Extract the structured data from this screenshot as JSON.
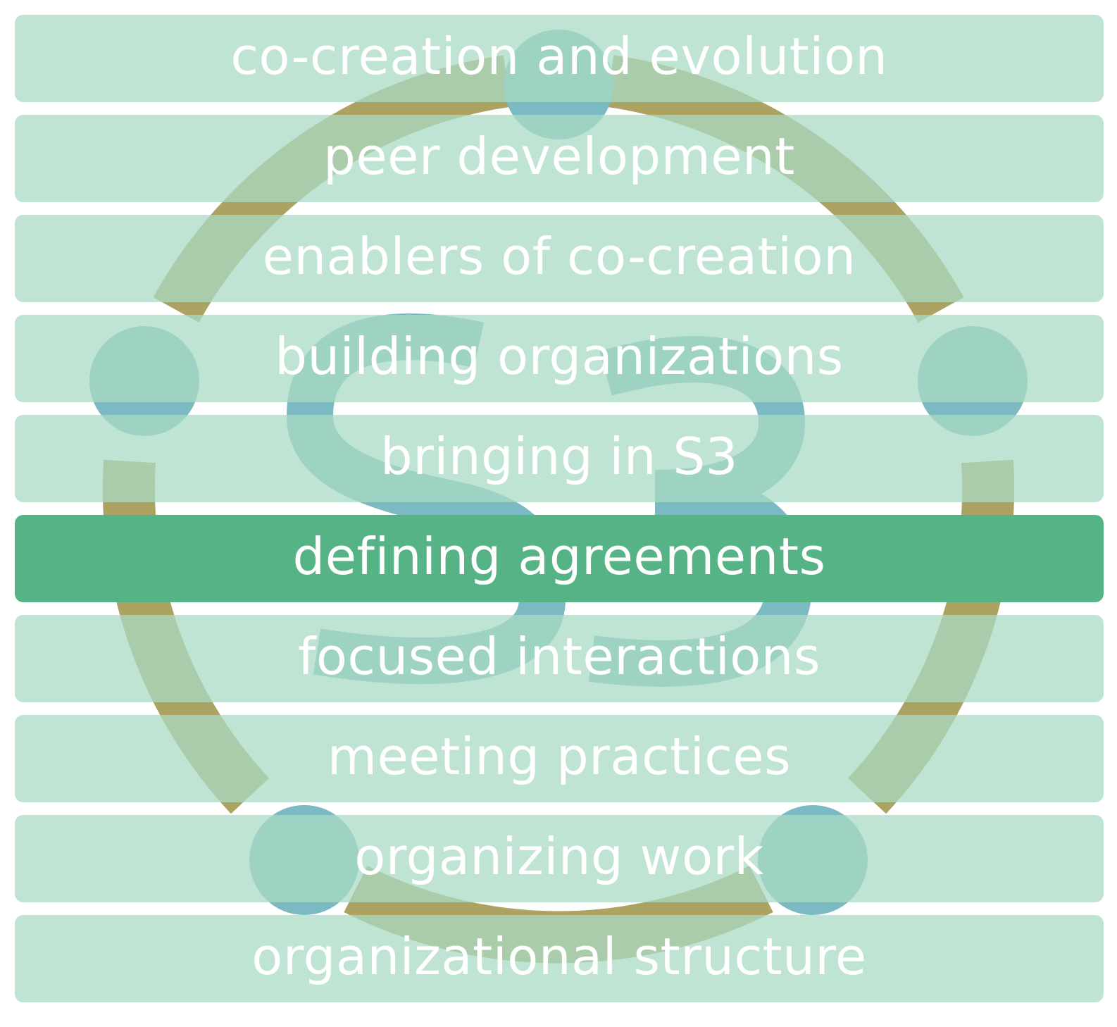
{
  "colors": {
    "row_background": "#aadbc3",
    "row_active_background": "#56b386",
    "label_text": "#ffffff",
    "ring": "#aca262",
    "dots_and_mark": "#7bbac2"
  },
  "logo": {
    "icon": "s3-circle-logo-icon",
    "mark_text": "S3"
  },
  "categories": [
    {
      "label": "co-creation and evolution",
      "active": false
    },
    {
      "label": "peer development",
      "active": false
    },
    {
      "label": "enablers of co-creation",
      "active": false
    },
    {
      "label": "building organizations",
      "active": false
    },
    {
      "label": "bringing in S3",
      "active": false
    },
    {
      "label": "defining agreements",
      "active": true
    },
    {
      "label": "focused interactions",
      "active": false
    },
    {
      "label": "meeting practices",
      "active": false
    },
    {
      "label": "organizing work",
      "active": false
    },
    {
      "label": "organizational structure",
      "active": false
    }
  ]
}
